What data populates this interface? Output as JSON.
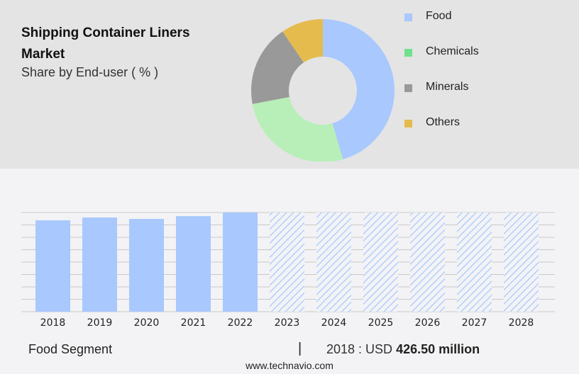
{
  "header": {
    "title": "Shipping Container Liners Market",
    "subtitle": "Share by End-user ( % )"
  },
  "chart_data": [
    {
      "type": "pie",
      "donut": true,
      "categories": [
        "Food",
        "Chemicals",
        "Minerals",
        "Others"
      ],
      "values": [
        45.5,
        26.5,
        18.5,
        9.5
      ],
      "colors": [
        "#a8c8fe",
        "#b8efb8",
        "#999999",
        "#e5bb4e"
      ],
      "legend_colors": [
        "#a8c8fe",
        "#6ee08e",
        "#999999",
        "#e5bb4e"
      ],
      "legend": "right"
    },
    {
      "type": "bar",
      "categories": [
        "2018",
        "2019",
        "2020",
        "2021",
        "2022",
        "2023",
        "2024",
        "2025",
        "2026",
        "2027",
        "2028"
      ],
      "values": [
        426.5,
        439.7,
        433,
        446,
        463,
        null,
        null,
        null,
        null,
        null,
        null
      ],
      "forecast_from": "2023",
      "color": "#a8c8fe",
      "grid": true,
      "ylim": [
        0,
        463
      ]
    }
  ],
  "footer": {
    "segment": "Food Segment",
    "separator": "|",
    "year_label": "2018 : USD",
    "value": "426.50 million",
    "site": "www.technavio.com"
  }
}
